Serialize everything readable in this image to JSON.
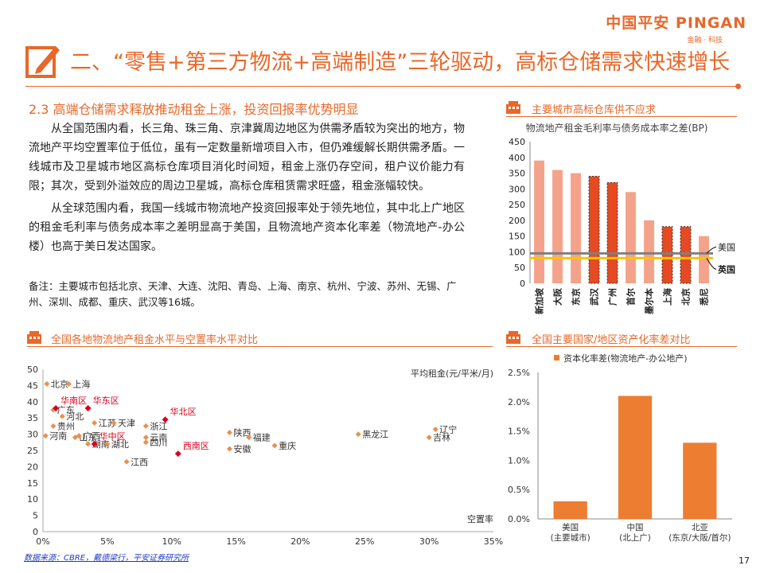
{
  "header": {
    "brand_main": "中国平安 PINGAN",
    "brand_sub": "金融 · 科技",
    "title": "二、“零售+第三方物流+高端制造”三轮驱动，高标仓储需求快速增长"
  },
  "section": {
    "title": "2.3  高端仓储需求释放推动租金上涨，投资回报率优势明显",
    "paragraphs": [
      "从全国范围内看，长三角、珠三角、京津冀周边地区为供需矛盾较为突出的地方，物流地产平均空置率位于低位，虽有一定数量新增项目入市，但仍难缓解长期供需矛盾。一线城市及卫星城市地区高标仓库项目消化时间短，租金上涨仍存空间，租户议价能力有限；其次，受到外溢效应的周边卫星城，高标仓库租赁需求旺盛，租金涨幅较快。",
      "从全球范围内看，我国一线城市物流地产投资回报率处于领先地位，其中北上广地区的租金毛利率与债务成本率之差明显高于美国，且物流地产资本化率差（物流地产-办公楼）也高于美日发达国家。"
    ],
    "note": "备注：主要城市包括北京、天津、大连、沈阳、青岛、上海、南京、杭州、宁波、苏州、无锡、广州、深圳、成都、重庆、武汉等16城。"
  },
  "source": "数据来源：CBRE，戴德梁行，平安证券研究所",
  "page_number": "17",
  "colors": {
    "accent": "#e8682a",
    "bar_light": "#f4a38a",
    "bar_strong": "#e64a23",
    "us_line": "#808080",
    "uk_line": "#f7c600",
    "capex_bar": "#ed7d31",
    "scatter_point": "#e8914f",
    "region_label": "#d9001b"
  },
  "chart_data": [
    {
      "type": "bar",
      "panel_title": "主要城市高标仓库供不应求",
      "title": "物流地产租金毛利率与债务成本率之差(BP)",
      "categories": [
        "新加坡",
        "大阪",
        "东京",
        "武汉",
        "广州",
        "首尔",
        "墨尔本",
        "上海",
        "北京",
        "悉尼"
      ],
      "values": [
        390,
        360,
        350,
        340,
        320,
        290,
        200,
        180,
        180,
        150
      ],
      "highlighted": [
        "武汉",
        "广州",
        "上海",
        "北京"
      ],
      "reference_lines": [
        {
          "name": "美国",
          "value": 95
        },
        {
          "name": "英国",
          "value": 80
        }
      ],
      "ylim": [
        0,
        450
      ],
      "yticks": [
        0,
        50,
        100,
        150,
        200,
        250,
        300,
        350,
        400,
        450
      ],
      "grid": false
    },
    {
      "type": "scatter",
      "panel_title": "全国各地物流地产租金水平与空置率水平对比",
      "xlabel": "空置率",
      "ylabel": "平均租金(元/平米/月)",
      "xlim": [
        0,
        35
      ],
      "ylim": [
        0,
        50
      ],
      "xticks": [
        "0%",
        "5%",
        "10%",
        "15%",
        "20%",
        "25%",
        "30%",
        "35%"
      ],
      "yticks": [
        0,
        5,
        10,
        15,
        20,
        25,
        30,
        35,
        40,
        45,
        50
      ],
      "points": [
        {
          "label": "北京",
          "x": 0.3,
          "y": 45.5
        },
        {
          "label": "上海",
          "x": 2.0,
          "y": 45.5
        },
        {
          "label": "广东",
          "x": 0.8,
          "y": 37.5
        },
        {
          "label": "贵州",
          "x": 0.8,
          "y": 32.5
        },
        {
          "label": "河北",
          "x": 1.5,
          "y": 35.5
        },
        {
          "label": "河南",
          "x": 0.2,
          "y": 29.5
        },
        {
          "label": "山东",
          "x": 2.5,
          "y": 29.0
        },
        {
          "label": "江苏",
          "x": 4.0,
          "y": 33.5
        },
        {
          "label": "广西",
          "x": 2.8,
          "y": 29.5
        },
        {
          "label": "湖南",
          "x": 3.5,
          "y": 27.0
        },
        {
          "label": "湖北",
          "x": 5.0,
          "y": 27.0
        },
        {
          "label": "天津",
          "x": 5.5,
          "y": 33.5
        },
        {
          "label": "浙江",
          "x": 8.0,
          "y": 32.5
        },
        {
          "label": "云南",
          "x": 8.0,
          "y": 29.0
        },
        {
          "label": "四川",
          "x": 8.0,
          "y": 27.5
        },
        {
          "label": "江西",
          "x": 6.5,
          "y": 21.5
        },
        {
          "label": "陕西",
          "x": 14.5,
          "y": 30.5
        },
        {
          "label": "福建",
          "x": 16.0,
          "y": 29.0
        },
        {
          "label": "安徽",
          "x": 14.5,
          "y": 25.5
        },
        {
          "label": "重庆",
          "x": 18.0,
          "y": 26.5
        },
        {
          "label": "黑龙江",
          "x": 24.5,
          "y": 30.0
        },
        {
          "label": "辽宁",
          "x": 30.5,
          "y": 31.5
        },
        {
          "label": "吉林",
          "x": 30.0,
          "y": 29.0
        }
      ],
      "regions": [
        {
          "label": "华南区",
          "x": 1.0,
          "y": 38.0
        },
        {
          "label": "华东区",
          "x": 3.5,
          "y": 38.0
        },
        {
          "label": "华北区",
          "x": 9.5,
          "y": 34.5
        },
        {
          "label": "华中区",
          "x": 4.0,
          "y": 27.0
        },
        {
          "label": "西南区",
          "x": 10.5,
          "y": 24.0
        }
      ]
    },
    {
      "type": "bar",
      "panel_title": "全国主要国家/地区资产化率差对比",
      "legend": "资本化率差(物流地产-办公地产)",
      "categories": [
        "美国\n(主要城市)",
        "中国\n(北上广)",
        "北亚\n(东京/大阪/首尔)"
      ],
      "values": [
        0.3,
        2.1,
        1.3
      ],
      "ylim": [
        0,
        2.5
      ],
      "yticks": [
        "0.0%",
        "0.5%",
        "1.0%",
        "1.5%",
        "2.0%",
        "2.5%"
      ]
    }
  ]
}
